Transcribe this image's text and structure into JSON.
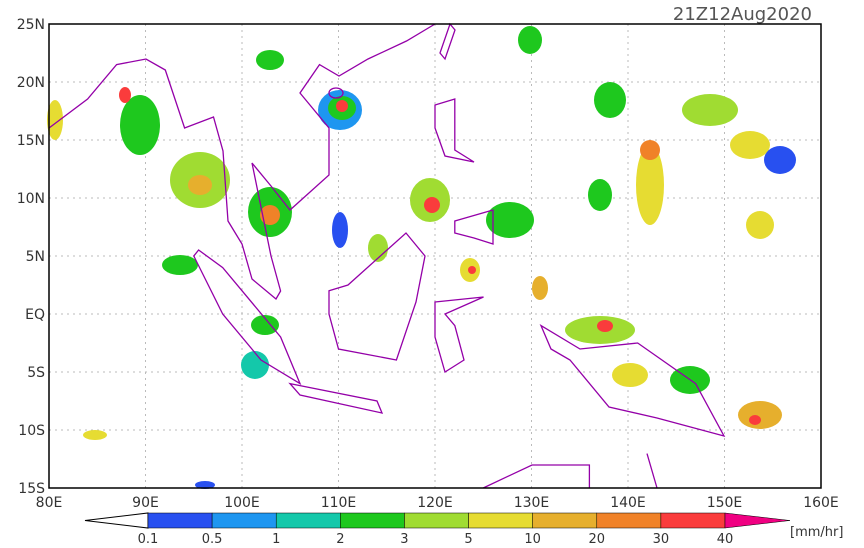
{
  "title": "21Z12Aug2020",
  "map": {
    "lat_labels": [
      "25N",
      "20N",
      "15N",
      "10N",
      "5N",
      "EQ",
      "5S",
      "10S",
      "15S"
    ],
    "lon_labels": [
      "80E",
      "90E",
      "100E",
      "110E",
      "120E",
      "130E",
      "140E",
      "150E",
      "160E"
    ]
  },
  "colorbar": {
    "unit": "[mm/hr]",
    "levels": [
      "0.1",
      "0.5",
      "1",
      "2",
      "3",
      "5",
      "10",
      "20",
      "30",
      "40"
    ],
    "colors": [
      "#ffffff",
      "#2850f0",
      "#1e96f0",
      "#14c8aa",
      "#1ec81e",
      "#a0dc32",
      "#e6dc32",
      "#e6af2d",
      "#f08228",
      "#fa3c3c",
      "#f00082"
    ]
  }
}
